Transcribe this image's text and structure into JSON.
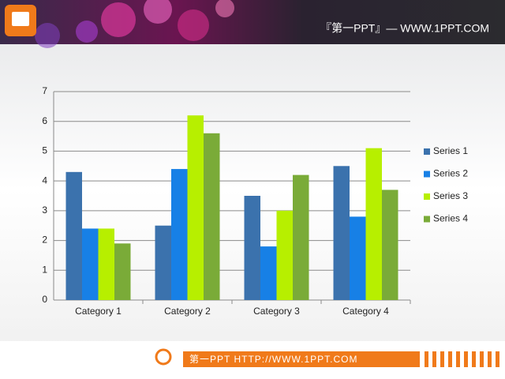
{
  "header": {
    "title": "『第一PPT』— WWW.1PPT.COM"
  },
  "footer": {
    "text": "第一PPT HTTP://WWW.1PPT.COM"
  },
  "chart_data": {
    "type": "bar",
    "categories": [
      "Category 1",
      "Category 2",
      "Category 3",
      "Category 4"
    ],
    "series": [
      {
        "name": "Series 1",
        "color": "#3b72ad",
        "values": [
          4.3,
          2.5,
          3.5,
          4.5
        ]
      },
      {
        "name": "Series 2",
        "color": "#1780e6",
        "values": [
          2.4,
          4.4,
          1.8,
          2.8
        ]
      },
      {
        "name": "Series 3",
        "color": "#b7ef00",
        "values": [
          2.4,
          6.2,
          3.0,
          5.1
        ]
      },
      {
        "name": "Series 4",
        "color": "#7aab38",
        "values": [
          1.9,
          5.6,
          4.2,
          3.7
        ]
      }
    ],
    "ylim": [
      0,
      7
    ],
    "yticks": [
      0,
      1,
      2,
      3,
      4,
      5,
      6,
      7
    ],
    "grid": true,
    "legend": "right"
  }
}
